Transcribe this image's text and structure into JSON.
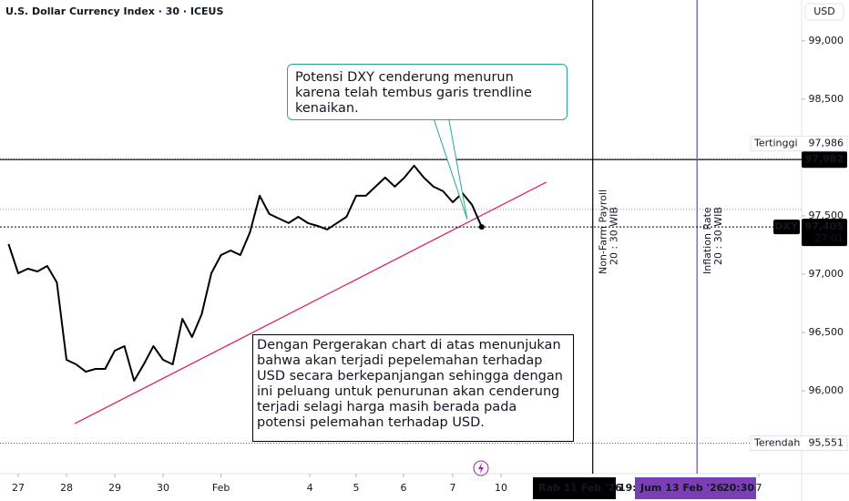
{
  "chart_data": {
    "type": "line",
    "title": "U.S. Dollar Currency Index · 30 · ICEUS",
    "currency": "USD",
    "x": [
      -0.2,
      0,
      0.2,
      0.4,
      0.6,
      0.8,
      1.0,
      1.2,
      1.4,
      1.6,
      1.8,
      2.0,
      2.2,
      2.4,
      2.6,
      2.8,
      3.0,
      3.2,
      3.4,
      3.6,
      3.8,
      4.0,
      4.2,
      4.4,
      4.6,
      4.8,
      5.0,
      5.2,
      5.4,
      5.6,
      5.8,
      6.0,
      6.2,
      6.4,
      6.6,
      6.8,
      7.0,
      7.2,
      7.4,
      7.6,
      7.8,
      8.0,
      8.2,
      8.4,
      8.6,
      8.8,
      9.0,
      9.2,
      9.4,
      9.6
    ],
    "series": [
      {
        "name": "DXY",
        "color": "#000000",
        "values": [
          97258,
          97008,
          97047,
          97023,
          97070,
          96930,
          96266,
          96227,
          96164,
          96188,
          96188,
          96344,
          96383,
          96086,
          96227,
          96383,
          96266,
          96227,
          96617,
          96461,
          96656,
          97008,
          97164,
          97203,
          97164,
          97359,
          97672,
          97516,
          97477,
          97438,
          97492,
          97438,
          97414,
          97383,
          97438,
          97492,
          97672,
          97672,
          97750,
          97828,
          97750,
          97828,
          97930,
          97828,
          97750,
          97711,
          97617,
          97695,
          97594,
          97405
        ]
      }
    ],
    "last_price": {
      "value": 97405,
      "label": "97,405",
      "countdown": "27:01"
    },
    "xlim": [
      -0.377,
      16.226
    ],
    "ylim": [
      95290,
      99350
    ],
    "xticks": [
      {
        "value": 0,
        "label": "27"
      },
      {
        "value": 1,
        "label": "28"
      },
      {
        "value": 2,
        "label": "29"
      },
      {
        "value": 3,
        "label": "30"
      },
      {
        "value": 4.2,
        "label": "Feb"
      },
      {
        "value": 6.04,
        "label": "4"
      },
      {
        "value": 7,
        "label": "5"
      },
      {
        "value": 7.98,
        "label": "6"
      },
      {
        "value": 9,
        "label": "7"
      },
      {
        "value": 10,
        "label": "10"
      },
      {
        "value": 15.34,
        "label": "7"
      }
    ],
    "yticks": [
      {
        "value": 96000,
        "label": "96,000"
      },
      {
        "value": 96500,
        "label": "96,500"
      },
      {
        "value": 97000,
        "label": "97,000"
      },
      {
        "value": 97500,
        "label": "97,500"
      },
      {
        "value": 98500,
        "label": "98,500"
      },
      {
        "value": 99000,
        "label": "99,000"
      }
    ],
    "levels": [
      {
        "name": "Tertinggi",
        "value": 97986,
        "label": "97,986"
      },
      {
        "value": 97982,
        "label": "97,982"
      },
      {
        "name": "Terendah",
        "value": 95551,
        "label": "95,551"
      }
    ],
    "resistance_dotted": 97555,
    "trendline": {
      "x": [
        1.17,
        10.94
      ],
      "values": [
        95719,
        97789
      ],
      "color": "#e0245e"
    },
    "events": [
      {
        "name": "Non-Farm Payroll",
        "time": "20 : 30 WIB",
        "x": 11.9,
        "color": "#000000",
        "axis_label": "Rab 11 Feb '26",
        "axis_time": "19:"
      },
      {
        "name": "Inflation Rate",
        "time": "20 : 30 WIB",
        "x": 14.06,
        "color": "#7b3fb5",
        "axis_label": "Jum 13 Feb '26",
        "axis_time": "20:30"
      }
    ],
    "annotations": [
      "Potensi DXY cenderung menurun karena telah tembus garis trendline kenaikan.",
      "Dengan Pergerakan chart di atas menunjukan bahwa akan terjadi pepelemahan terhadap USD secara berkepanjangan sehingga dengan ini peluang untuk penurunan akan cenderung terjadi selagi  harga masih berada pada potensi pelemahan terhadap USD."
    ]
  }
}
